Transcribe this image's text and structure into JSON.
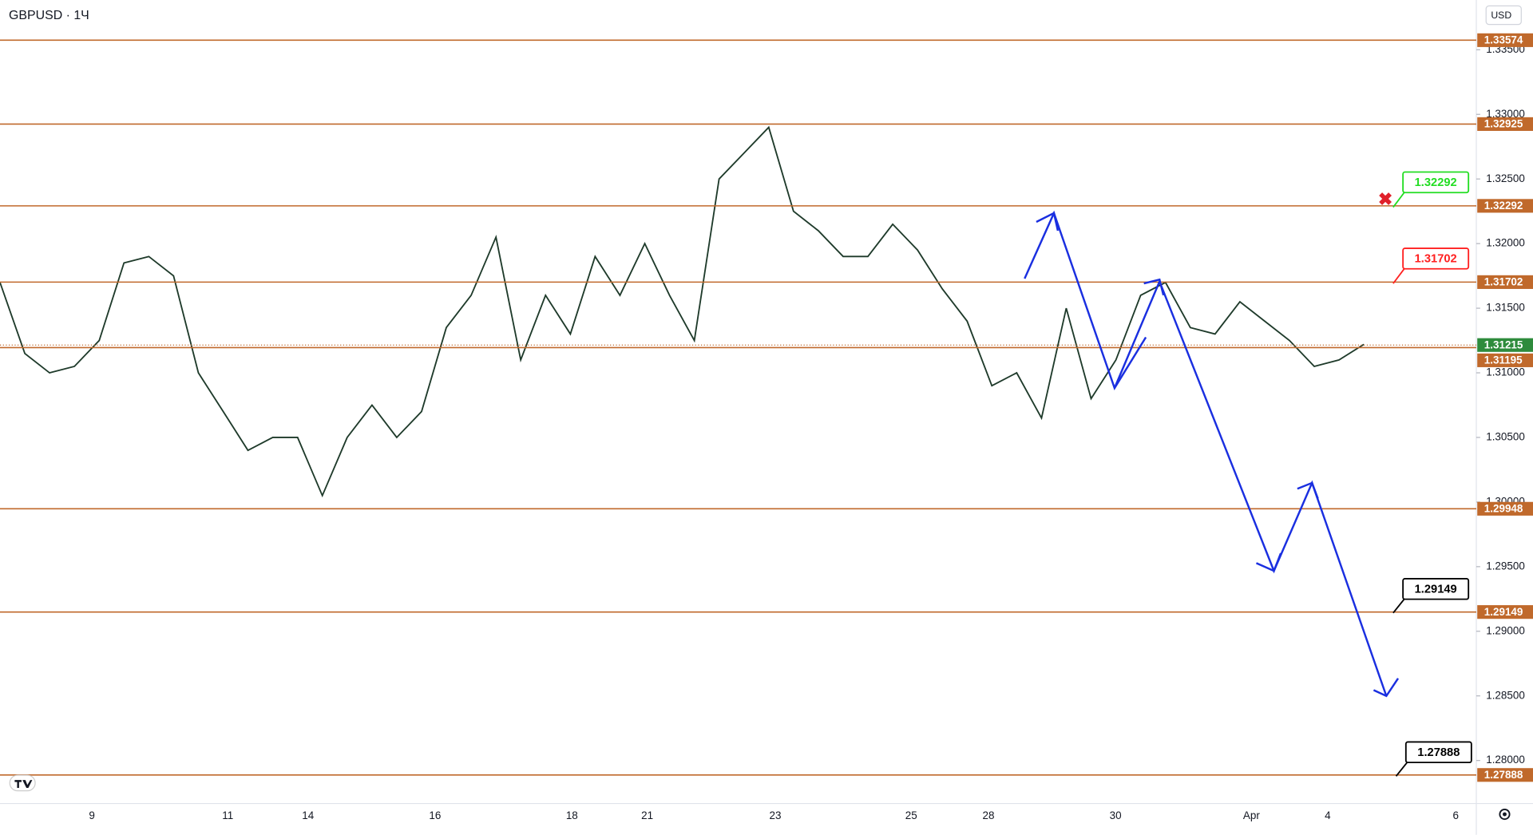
{
  "chart_data": {
    "type": "line",
    "title": "GBPUSD · 1Ч",
    "currency": "USD",
    "ylim": [
      1.27667,
      1.33885
    ],
    "yticks": [
      {
        "value": 1.28,
        "label": "1.28000"
      },
      {
        "value": 1.285,
        "label": "1.28500"
      },
      {
        "value": 1.29,
        "label": "1.29000"
      },
      {
        "value": 1.295,
        "label": "1.29500"
      },
      {
        "value": 1.3,
        "label": "1.30000"
      },
      {
        "value": 1.305,
        "label": "1.30500"
      },
      {
        "value": 1.31,
        "label": "1.31000"
      },
      {
        "value": 1.315,
        "label": "1.31500"
      },
      {
        "value": 1.32,
        "label": "1.32000"
      },
      {
        "value": 1.325,
        "label": "1.32500"
      },
      {
        "value": 1.33,
        "label": "1.33000"
      },
      {
        "value": 1.335,
        "label": "1.33500"
      }
    ],
    "xticks": [
      "9",
      "11",
      "14",
      "16",
      "18",
      "21",
      "23",
      "25",
      "28",
      "30",
      "Apr",
      "4",
      "6"
    ],
    "series": [
      {
        "name": "GBPUSD",
        "color": "#1e3a2a",
        "values": [
          1.317,
          1.3115,
          1.31,
          1.3105,
          1.3125,
          1.3185,
          1.319,
          1.3175,
          1.31,
          1.307,
          1.304,
          1.305,
          1.305,
          1.3005,
          1.305,
          1.3075,
          1.305,
          1.307,
          1.3135,
          1.316,
          1.3205,
          1.311,
          1.316,
          1.313,
          1.319,
          1.316,
          1.32,
          1.316,
          1.3125,
          1.325,
          1.327,
          1.329,
          1.3225,
          1.321,
          1.319,
          1.319,
          1.3215,
          1.3195,
          1.3165,
          1.314,
          1.309,
          1.31,
          1.3065,
          1.315,
          1.308,
          1.311,
          1.316,
          1.317,
          1.3135,
          1.313,
          1.3155,
          1.314,
          1.3125,
          1.3105,
          1.311,
          1.3122
        ]
      }
    ],
    "levels": [
      {
        "value": 1.33574,
        "label": "1.33574",
        "color": "#c0692b"
      },
      {
        "value": 1.32925,
        "label": "1.32925",
        "color": "#c0692b"
      },
      {
        "value": 1.32292,
        "label": "1.32292",
        "color": "#c0692b"
      },
      {
        "value": 1.31702,
        "label": "1.31702",
        "color": "#c0692b"
      },
      {
        "value": 1.31215,
        "label": "1.31215",
        "color": "#2e8b3c"
      },
      {
        "value": 1.31195,
        "label": "1.31195",
        "color": "#c0692b"
      },
      {
        "value": 1.29948,
        "label": "1.29948",
        "color": "#c0692b"
      },
      {
        "value": 1.29149,
        "label": "1.29149",
        "color": "#c0692b"
      },
      {
        "value": 1.27888,
        "label": "1.27888",
        "color": "#c0692b"
      }
    ],
    "callouts": [
      {
        "text": "1.32292",
        "color": "#22dd22"
      },
      {
        "text": "1.31702",
        "color": "#ff2020"
      },
      {
        "text": "1.29149",
        "color": "#000000"
      },
      {
        "text": "1.27888",
        "color": "#000000"
      }
    ]
  }
}
